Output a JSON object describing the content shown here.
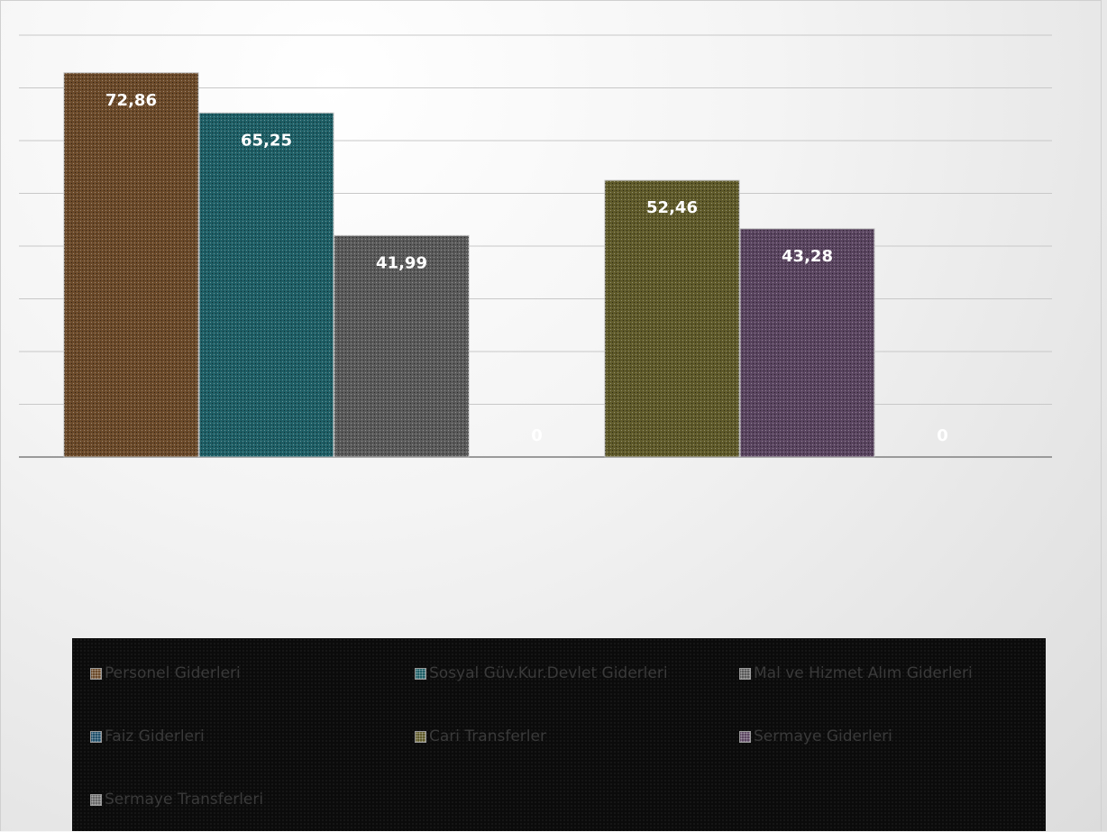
{
  "chart_data": {
    "type": "bar",
    "categories": [
      "",
      ""
    ],
    "series": [
      {
        "name": "Personel Giderleri",
        "values": [
          72.86,
          null
        ],
        "color": "#6b4a2a"
      },
      {
        "name": "Sosyal Güv.Kur.Devlet Giderleri",
        "values": [
          65.25,
          null
        ],
        "color": "#1f5f66"
      },
      {
        "name": "Mal ve Hizmet Alım Giderleri",
        "values": [
          41.99,
          null
        ],
        "color": "#5a5a5a"
      },
      {
        "name": "Faiz Giderleri",
        "values": [
          0,
          null
        ],
        "color": "#1f4f6a"
      },
      {
        "name": "Cari Transferler",
        "values": [
          null,
          52.46
        ],
        "color": "#5f5a2a"
      },
      {
        "name": "Sermaye Giderleri",
        "values": [
          null,
          43.28
        ],
        "color": "#5a4560"
      },
      {
        "name": "Sermaye Transferleri",
        "values": [
          null,
          0
        ],
        "color": "#6a6a6a"
      }
    ],
    "bars": [
      {
        "series": "Personel Giderleri",
        "value": 72.86,
        "label": "72,86",
        "color": "#6b4a2a"
      },
      {
        "series": "Sosyal Güv.Kur.Devlet Giderleri",
        "value": 65.25,
        "label": "65,25",
        "color": "#1f5f66"
      },
      {
        "series": "Mal ve Hizmet Alım Giderleri",
        "value": 41.99,
        "label": "41,99",
        "color": "#5a5a5a"
      },
      {
        "series": "Faiz Giderleri",
        "value": 0,
        "label": "0",
        "color": "#1f4f6a"
      },
      {
        "series": "Cari Transferler",
        "value": 52.46,
        "label": "52,46",
        "color": "#5f5a2a"
      },
      {
        "series": "Sermaye Giderleri",
        "value": 43.28,
        "label": "43,28",
        "color": "#5a4560"
      },
      {
        "series": "Sermaye Transferleri",
        "value": 0,
        "label": "0",
        "color": "#6a6a6a"
      }
    ],
    "title": "",
    "xlabel": "",
    "ylabel": "",
    "ylim": [
      0,
      80
    ],
    "grid": true,
    "legend_position": "bottom"
  }
}
